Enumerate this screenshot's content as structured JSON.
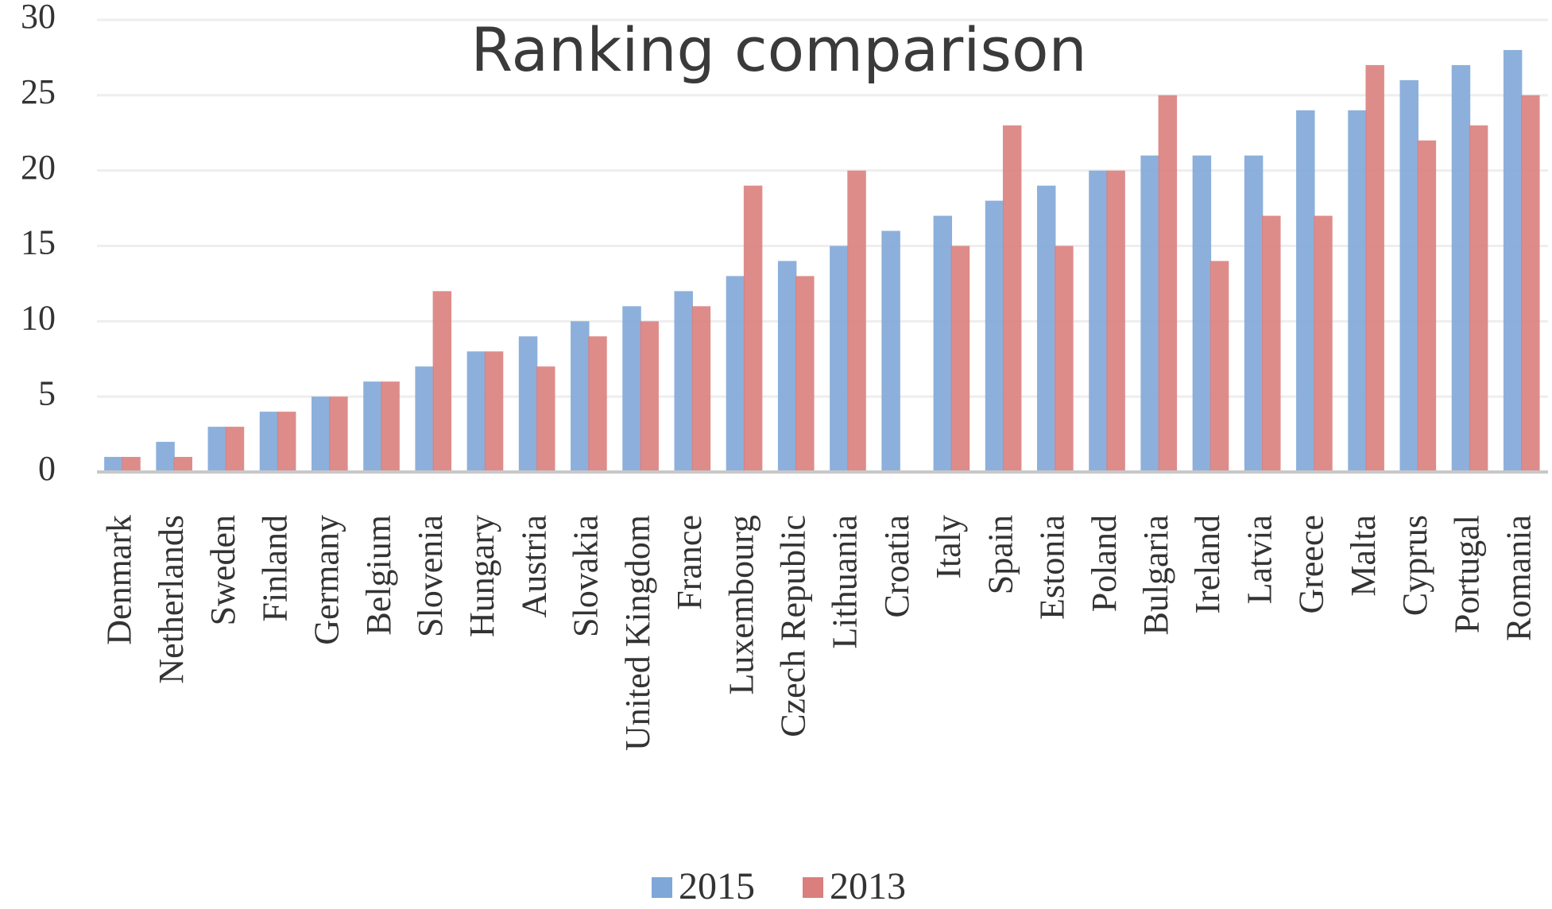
{
  "chart_data": {
    "type": "bar",
    "title": "Ranking comparison",
    "categories": [
      "Denmark",
      "Netherlands",
      "Sweden",
      "Finland",
      "Germany",
      "Belgium",
      "Slovenia",
      "Hungary",
      "Austria",
      "Slovakia",
      "United Kingdom",
      "France",
      "Luxembourg",
      "Czech Republic",
      "Lithuania",
      "Croatia",
      "Italy",
      "Spain",
      "Estonia",
      "Poland",
      "Bulgaria",
      "Ireland",
      "Latvia",
      "Greece",
      "Malta",
      "Cyprus",
      "Portugal",
      "Romania"
    ],
    "series": [
      {
        "name": "2015",
        "color": "#7fa7d7",
        "values": [
          1,
          2,
          3,
          4,
          5,
          6,
          7,
          8,
          9,
          10,
          11,
          12,
          13,
          14,
          15,
          16,
          17,
          18,
          19,
          20,
          21,
          21,
          21,
          24,
          24,
          26,
          27,
          28
        ]
      },
      {
        "name": "2013",
        "color": "#da7f7d",
        "values": [
          1,
          1,
          3,
          4,
          5,
          6,
          12,
          8,
          7,
          9,
          10,
          11,
          19,
          13,
          20,
          null,
          15,
          23,
          15,
          20,
          25,
          14,
          17,
          17,
          27,
          22,
          23,
          25
        ]
      }
    ],
    "ylim": [
      0,
      30
    ],
    "yticks": [
      0,
      5,
      10,
      15,
      20,
      25,
      30
    ],
    "grid": true,
    "legend": "bottom"
  }
}
